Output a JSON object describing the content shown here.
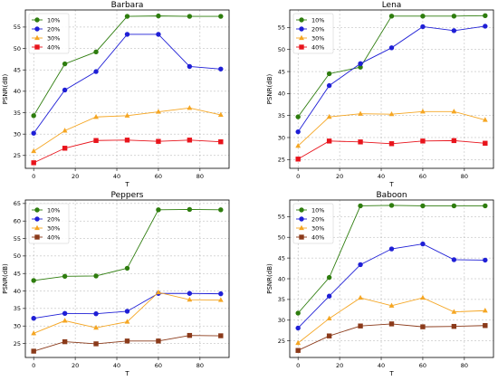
{
  "chart_data": [
    {
      "type": "line",
      "title": "Barbara",
      "xlabel": "T",
      "ylabel": "PSNR(dB)",
      "x": [
        0,
        15,
        30,
        45,
        60,
        75,
        90
      ],
      "xticks": [
        0,
        20,
        40,
        60,
        80
      ],
      "yticks": [
        25,
        30,
        35,
        40,
        45,
        50,
        55
      ],
      "xlim": [
        -4,
        94
      ],
      "ylim": [
        22,
        59
      ],
      "grid": true,
      "legend": "top-left",
      "series": [
        {
          "name": "10%",
          "color": "#2e7d0e",
          "marker": "circle",
          "values": [
            34.3,
            46.4,
            49.2,
            57.5,
            57.6,
            57.5,
            57.5
          ]
        },
        {
          "name": "20%",
          "color": "#1f1fd6",
          "marker": "circle",
          "values": [
            30.2,
            40.3,
            44.6,
            53.3,
            53.3,
            45.8,
            45.2
          ]
        },
        {
          "name": "30%",
          "color": "#f5a623",
          "marker": "triangle",
          "values": [
            26.0,
            30.8,
            34.0,
            34.3,
            35.2,
            36.1,
            34.5
          ]
        },
        {
          "name": "40%",
          "color": "#e8141c",
          "marker": "square",
          "values": [
            23.3,
            26.7,
            28.5,
            28.6,
            28.3,
            28.6,
            28.2
          ]
        }
      ]
    },
    {
      "type": "line",
      "title": "Lena",
      "xlabel": "T",
      "ylabel": "PSNR(dB)",
      "x": [
        0,
        15,
        30,
        45,
        60,
        75,
        90
      ],
      "xticks": [
        0,
        20,
        40,
        60,
        80
      ],
      "yticks": [
        25,
        30,
        35,
        40,
        45,
        50,
        55
      ],
      "xlim": [
        -4,
        94
      ],
      "ylim": [
        23,
        59
      ],
      "grid": true,
      "legend": "top-left",
      "series": [
        {
          "name": "10%",
          "color": "#2e7d0e",
          "marker": "circle",
          "values": [
            34.7,
            44.5,
            46.0,
            57.6,
            57.6,
            57.6,
            57.7
          ]
        },
        {
          "name": "20%",
          "color": "#1f1fd6",
          "marker": "circle",
          "values": [
            31.3,
            41.8,
            46.8,
            50.4,
            55.2,
            54.3,
            55.3
          ]
        },
        {
          "name": "30%",
          "color": "#f5a623",
          "marker": "triangle",
          "values": [
            28.1,
            34.7,
            35.4,
            35.3,
            35.9,
            35.9,
            34.0
          ]
        },
        {
          "name": "40%",
          "color": "#e8141c",
          "marker": "square",
          "values": [
            25.1,
            29.2,
            29.0,
            28.6,
            29.2,
            29.3,
            28.7
          ]
        }
      ]
    },
    {
      "type": "line",
      "title": "Peppers",
      "xlabel": "T",
      "ylabel": "PSNR(dB)",
      "x": [
        0,
        15,
        30,
        45,
        60,
        75,
        90
      ],
      "xticks": [
        0,
        20,
        40,
        60,
        80
      ],
      "yticks": [
        25,
        30,
        35,
        40,
        45,
        50,
        55,
        60,
        65
      ],
      "xlim": [
        -4,
        94
      ],
      "ylim": [
        21,
        66
      ],
      "grid": true,
      "legend": "top-left",
      "series": [
        {
          "name": "10%",
          "color": "#2e7d0e",
          "marker": "circle",
          "values": [
            43.0,
            44.2,
            44.3,
            46.5,
            63.2,
            63.3,
            63.2
          ]
        },
        {
          "name": "20%",
          "color": "#1f1fd6",
          "marker": "circle",
          "values": [
            32.2,
            33.6,
            33.5,
            34.2,
            39.3,
            39.3,
            39.2
          ]
        },
        {
          "name": "30%",
          "color": "#f5a623",
          "marker": "triangle",
          "values": [
            27.9,
            31.5,
            29.5,
            31.2,
            39.6,
            37.5,
            37.4
          ]
        },
        {
          "name": "40%",
          "color": "#8b3a1a",
          "marker": "square",
          "values": [
            22.8,
            25.5,
            24.9,
            25.7,
            25.7,
            27.3,
            27.2
          ]
        }
      ]
    },
    {
      "type": "line",
      "title": "Baboon",
      "xlabel": "T",
      "ylabel": "PSNR(dB)",
      "x": [
        0,
        15,
        30,
        45,
        60,
        75,
        90
      ],
      "xticks": [
        0,
        20,
        40,
        60,
        80
      ],
      "yticks": [
        25,
        30,
        35,
        40,
        45,
        50,
        55
      ],
      "xlim": [
        -4,
        94
      ],
      "ylim": [
        21,
        59
      ],
      "grid": true,
      "legend": "top-left",
      "series": [
        {
          "name": "10%",
          "color": "#2e7d0e",
          "marker": "circle",
          "values": [
            31.7,
            40.3,
            57.6,
            57.7,
            57.6,
            57.6,
            57.6
          ]
        },
        {
          "name": "20%",
          "color": "#1f1fd6",
          "marker": "circle",
          "values": [
            28.1,
            35.8,
            43.4,
            47.2,
            48.4,
            44.6,
            44.5
          ]
        },
        {
          "name": "30%",
          "color": "#f5a623",
          "marker": "triangle",
          "values": [
            24.5,
            30.4,
            35.4,
            33.5,
            35.4,
            32.0,
            32.3
          ]
        },
        {
          "name": "40%",
          "color": "#8b3a1a",
          "marker": "square",
          "values": [
            22.7,
            26.2,
            28.6,
            29.1,
            28.4,
            28.5,
            28.7
          ]
        }
      ]
    }
  ]
}
